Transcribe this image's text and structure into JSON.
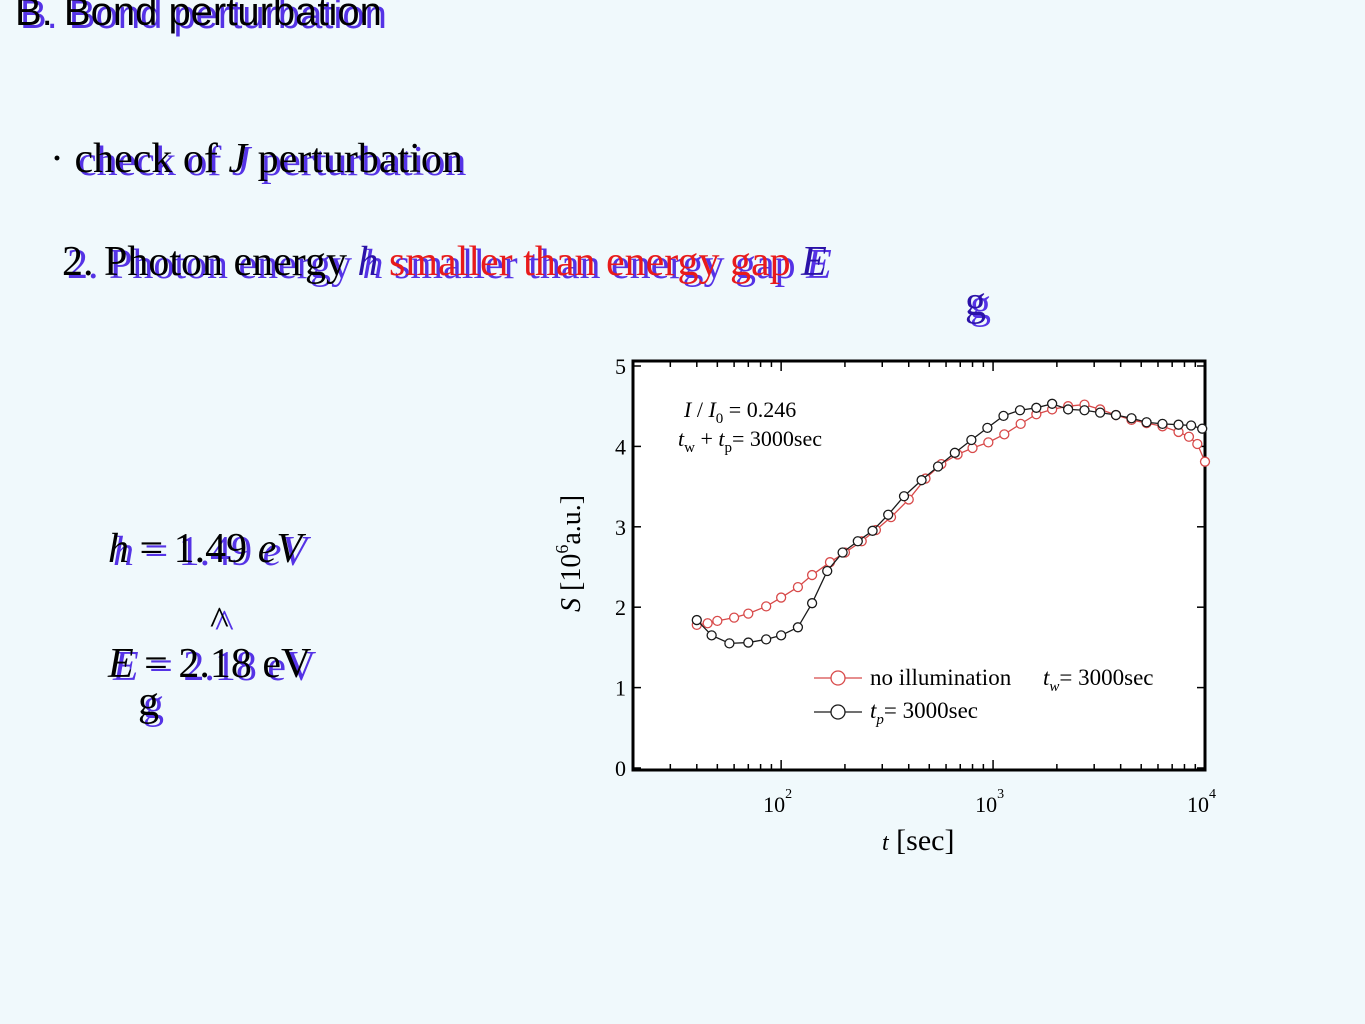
{
  "slide": {
    "title": "B. Bond perturbation",
    "bullet_mark": "·",
    "bullet_text_pre": "check of ",
    "bullet_symbol": "",
    "bullet_J": "J",
    "bullet_text_post": " perturbation",
    "item2_prefix": "2. Photon energy ",
    "item2_h": "h",
    "item2_nu": "",
    "item2_mid": " smaller than energy gap ",
    "item2_E": "E",
    "item2_sub": "g",
    "eq1_h": "h",
    "eq1_nu": "",
    "eq1_rest": " = 1.49 ",
    "eq1_unit": "eV",
    "eq2_E": "E",
    "eq2_rest": "  = 2.18 eV",
    "eq2_sub": "g",
    "eq2_caret": "^",
    "colors": {
      "accent": "#5533e6",
      "highlight": "#e81b1b"
    }
  },
  "chart_data": {
    "type": "line",
    "xscale": "log",
    "xlim": [
      20,
      10000
    ],
    "ylim": [
      0,
      5
    ],
    "yticks": [
      0,
      1,
      2,
      3,
      4,
      5
    ],
    "xtick_base": "10",
    "xtick_exps": [
      "2",
      "3",
      "4"
    ],
    "xtick_values": [
      100,
      1000,
      10000
    ],
    "xlabel_var": "t",
    "xlabel_unit": " [sec]",
    "ylabel_var": "S",
    "ylabel_pre": " [10",
    "ylabel_exp": "6",
    "ylabel_post": "a.u.]",
    "annotation1": {
      "I": "I",
      "sep": " / ",
      "I0": "I",
      "sub0": "0",
      "val": " = 0.246"
    },
    "annotation2": {
      "tw": "t",
      "subw": "w",
      "plus": " + ",
      "tp": "t",
      "subp": "p",
      "val": "= 3000sec"
    },
    "series": [
      {
        "name": "no illumination",
        "legend_t": "t",
        "legend_sub": "w",
        "legend_val": "= 3000sec",
        "color": "#d84a4a",
        "x": [
          40,
          45,
          50,
          60,
          70,
          85,
          100,
          120,
          140,
          170,
          200,
          240,
          280,
          330,
          400,
          480,
          570,
          680,
          800,
          950,
          1130,
          1350,
          1600,
          1900,
          2260,
          2700,
          3200,
          3800,
          4500,
          5300,
          6300,
          7500,
          8400,
          9200,
          10000
        ],
        "y": [
          1.78,
          1.8,
          1.83,
          1.87,
          1.92,
          2.01,
          2.12,
          2.25,
          2.4,
          2.56,
          2.68,
          2.82,
          2.96,
          3.12,
          3.34,
          3.6,
          3.78,
          3.9,
          3.98,
          4.05,
          4.15,
          4.28,
          4.4,
          4.46,
          4.5,
          4.52,
          4.46,
          4.39,
          4.33,
          4.29,
          4.25,
          4.18,
          4.12,
          4.03,
          3.81
        ]
      },
      {
        "name": "",
        "legend_t": "t",
        "legend_sub": "p",
        "legend_val": "= 3000sec",
        "color": "#1a1a1a",
        "x": [
          40,
          47,
          57,
          70,
          85,
          100,
          120,
          140,
          165,
          195,
          230,
          270,
          320,
          380,
          460,
          550,
          660,
          790,
          940,
          1120,
          1340,
          1600,
          1900,
          2260,
          2700,
          3200,
          3800,
          4500,
          5300,
          6300,
          7500,
          8600,
          9700
        ],
        "y": [
          1.84,
          1.65,
          1.55,
          1.56,
          1.6,
          1.65,
          1.75,
          2.05,
          2.45,
          2.68,
          2.82,
          2.95,
          3.15,
          3.38,
          3.58,
          3.75,
          3.92,
          4.08,
          4.23,
          4.38,
          4.45,
          4.48,
          4.53,
          4.46,
          4.45,
          4.42,
          4.39,
          4.35,
          4.3,
          4.28,
          4.27,
          4.26,
          4.22
        ]
      }
    ]
  }
}
